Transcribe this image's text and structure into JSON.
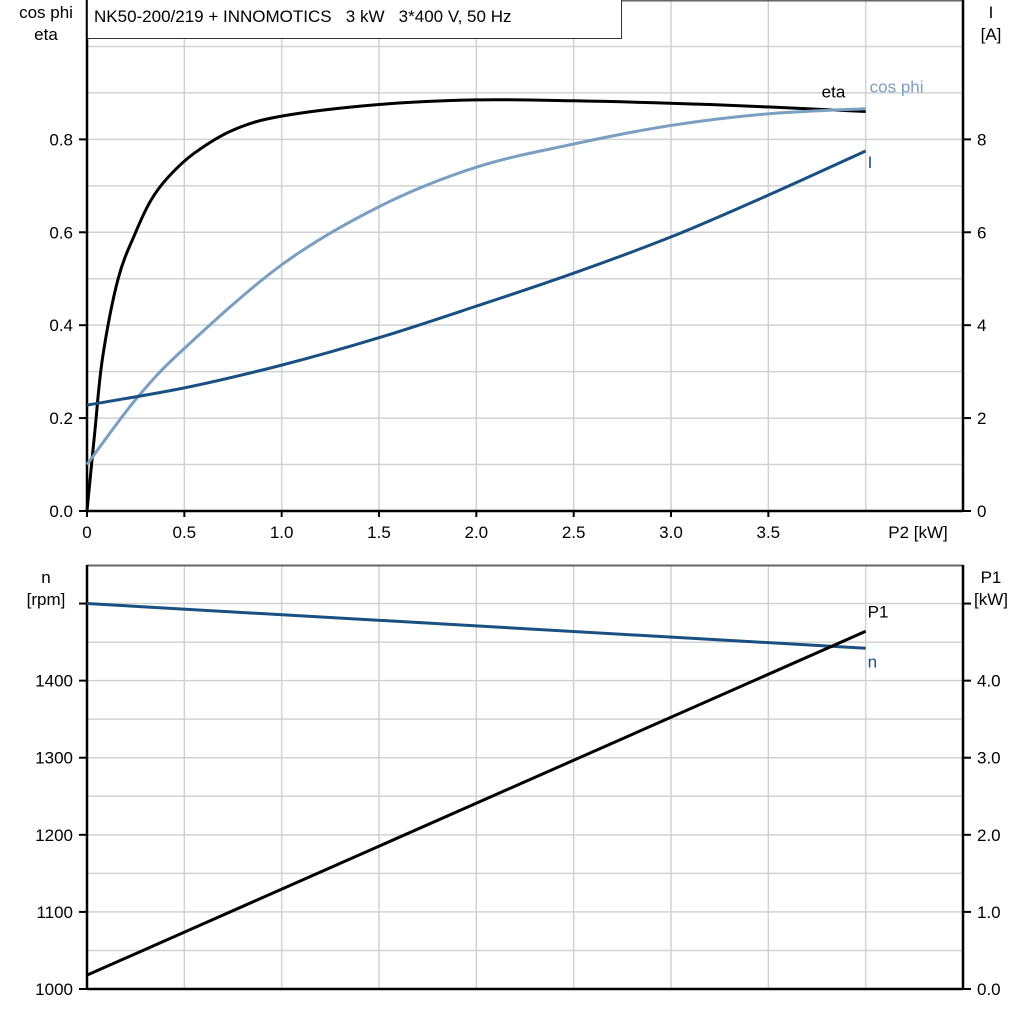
{
  "title": "NK50-200/219 + INNOMOTICS   3 kW   3*400 V, 50 Hz",
  "chart_data": [
    {
      "type": "line",
      "xlabel": "P2 [kW]",
      "xlim": [
        0,
        4.5
      ],
      "xticks": [
        "0",
        "0.5",
        "1.0",
        "1.5",
        "2.0",
        "2.5",
        "3.0",
        "3.5"
      ],
      "ylabel_left": [
        "cos phi",
        "eta"
      ],
      "ylim_left": [
        0,
        1.1
      ],
      "yticks_left": [
        "0.0",
        "0.2",
        "0.4",
        "0.6",
        "0.8"
      ],
      "ylabel_right": [
        "I",
        "[A]"
      ],
      "ylim_right": [
        0,
        11
      ],
      "yticks_right": [
        "0",
        "2",
        "4",
        "6",
        "8"
      ],
      "grid": true,
      "series": [
        {
          "name": "eta",
          "axis": "left",
          "color": "#000000",
          "x": [
            0,
            0.04,
            0.08,
            0.16,
            0.25,
            0.33,
            0.42,
            0.55,
            0.75,
            1.0,
            1.5,
            2.0,
            2.5,
            3.2,
            4.0
          ],
          "y": [
            0,
            0.17,
            0.33,
            0.5,
            0.6,
            0.67,
            0.72,
            0.77,
            0.82,
            0.85,
            0.875,
            0.885,
            0.883,
            0.875,
            0.86
          ]
        },
        {
          "name": "cos phi",
          "axis": "left",
          "color": "#7a9fc0",
          "x": [
            0,
            0.25,
            0.5,
            1.0,
            1.5,
            2.0,
            2.5,
            3.0,
            3.5,
            4.0
          ],
          "y": [
            0.1,
            0.24,
            0.35,
            0.53,
            0.655,
            0.74,
            0.79,
            0.83,
            0.855,
            0.866
          ]
        },
        {
          "name": "I",
          "axis": "right",
          "color": "#1a4f82",
          "x": [
            0,
            0.5,
            1.0,
            1.5,
            2.0,
            2.5,
            3.0,
            3.5,
            4.0
          ],
          "y": [
            2.28,
            2.65,
            3.14,
            3.73,
            4.41,
            5.12,
            5.9,
            6.8,
            7.75
          ]
        }
      ]
    },
    {
      "type": "line",
      "xlim": [
        0,
        4.5
      ],
      "ylabel_left": [
        "n",
        "[rpm]"
      ],
      "ylim_left": [
        1000,
        1550
      ],
      "yticks_left": [
        "1000",
        "1100",
        "1200",
        "1300",
        "1400"
      ],
      "ylabel_right": [
        "P1",
        "[kW]"
      ],
      "ylim_right": [
        0,
        5.5
      ],
      "yticks_right": [
        "0.0",
        "1.0",
        "2.0",
        "3.0",
        "4.0"
      ],
      "grid": true,
      "series": [
        {
          "name": "n",
          "axis": "left",
          "color": "#1a4f82",
          "x": [
            0,
            4.0
          ],
          "y": [
            1500,
            1442
          ]
        },
        {
          "name": "P1",
          "axis": "right",
          "color": "#000000",
          "x": [
            0,
            4.0
          ],
          "y": [
            0.18,
            4.64
          ]
        }
      ]
    }
  ]
}
